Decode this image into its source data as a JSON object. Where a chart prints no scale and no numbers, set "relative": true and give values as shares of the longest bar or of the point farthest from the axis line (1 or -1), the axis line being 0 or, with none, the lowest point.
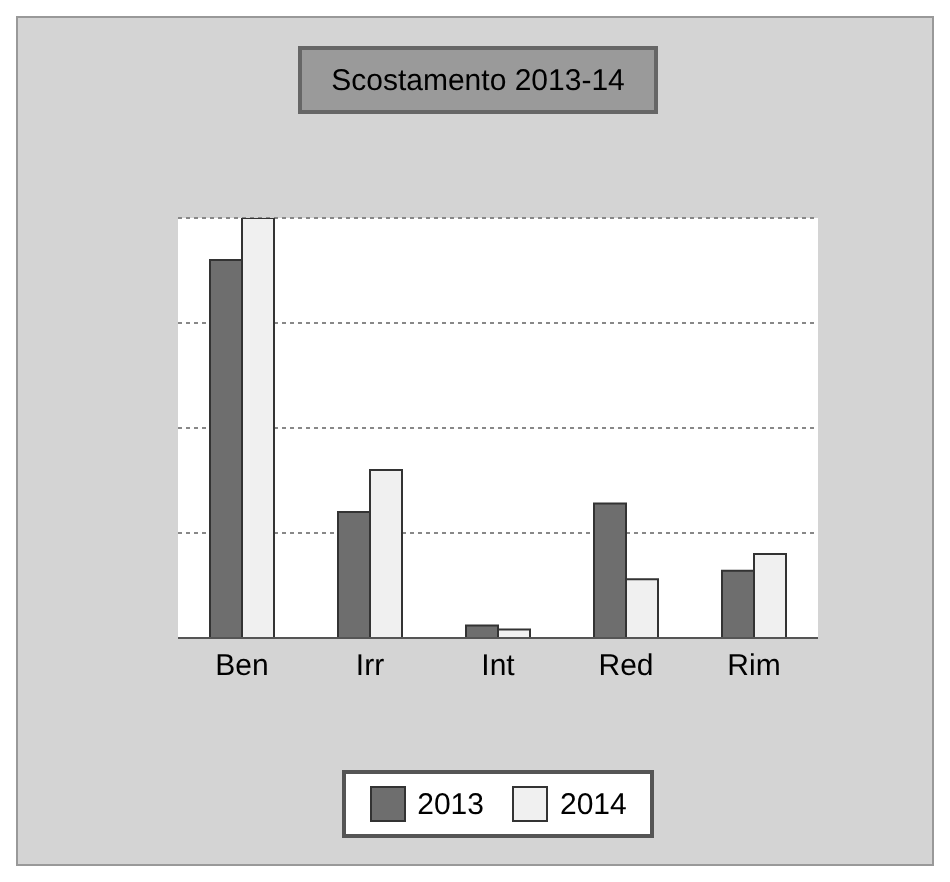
{
  "chart_data": {
    "type": "bar",
    "title": "Scostamento 2013-14",
    "relative": true,
    "categories": [
      "Ben",
      "Irr",
      "Int",
      "Red",
      "Rim"
    ],
    "series": [
      {
        "name": "2013",
        "color": "#6e6e6e",
        "values": [
          0.9,
          0.3,
          0.03,
          0.32,
          0.16
        ]
      },
      {
        "name": "2014",
        "color": "#f0f0f0",
        "values": [
          1,
          0.4,
          0.02,
          0.14,
          0.2
        ]
      }
    ],
    "grid": "y",
    "legend": "bottom"
  }
}
